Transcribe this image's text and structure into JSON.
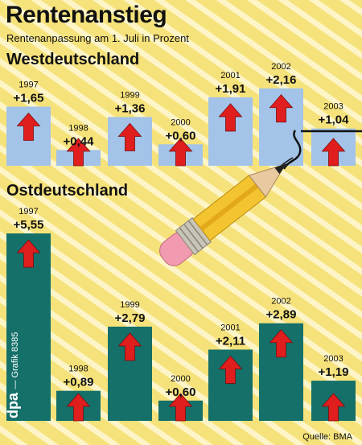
{
  "title": "Rentenanstieg",
  "subtitle": "Rentenanpassung am 1. Juli in Prozent",
  "source": "Quelle: BMA",
  "credit": {
    "brand": "dpa",
    "text": "— Grafik 8385"
  },
  "colors": {
    "background": "#f6e27a",
    "stripes": "#fdf5c8",
    "west_bar": "#a3c3e8",
    "east_bar": "#15706a",
    "arrow": "#e01e1e"
  },
  "chart_data": [
    {
      "type": "bar",
      "title": "Westdeutschland",
      "categories": [
        "1997",
        "1998",
        "1999",
        "2000",
        "2001",
        "2002",
        "2003"
      ],
      "values": [
        1.65,
        0.44,
        1.36,
        0.6,
        1.91,
        2.16,
        1.04
      ],
      "labels": [
        "+1,65",
        "+0,44",
        "+1,36",
        "+0,60",
        "+1,91",
        "+2,16",
        "+1,04"
      ],
      "ylim": [
        0,
        2.2
      ]
    },
    {
      "type": "bar",
      "title": "Ostdeutschland",
      "categories": [
        "1997",
        "1998",
        "1999",
        "2000",
        "2001",
        "2002",
        "2003"
      ],
      "values": [
        5.55,
        0.89,
        2.79,
        0.6,
        2.11,
        2.89,
        1.19
      ],
      "labels": [
        "+5,55",
        "+0,89",
        "+2,79",
        "+0,60",
        "+2,11",
        "+2,89",
        "+1,19"
      ],
      "ylim": [
        0,
        5.6
      ]
    }
  ]
}
